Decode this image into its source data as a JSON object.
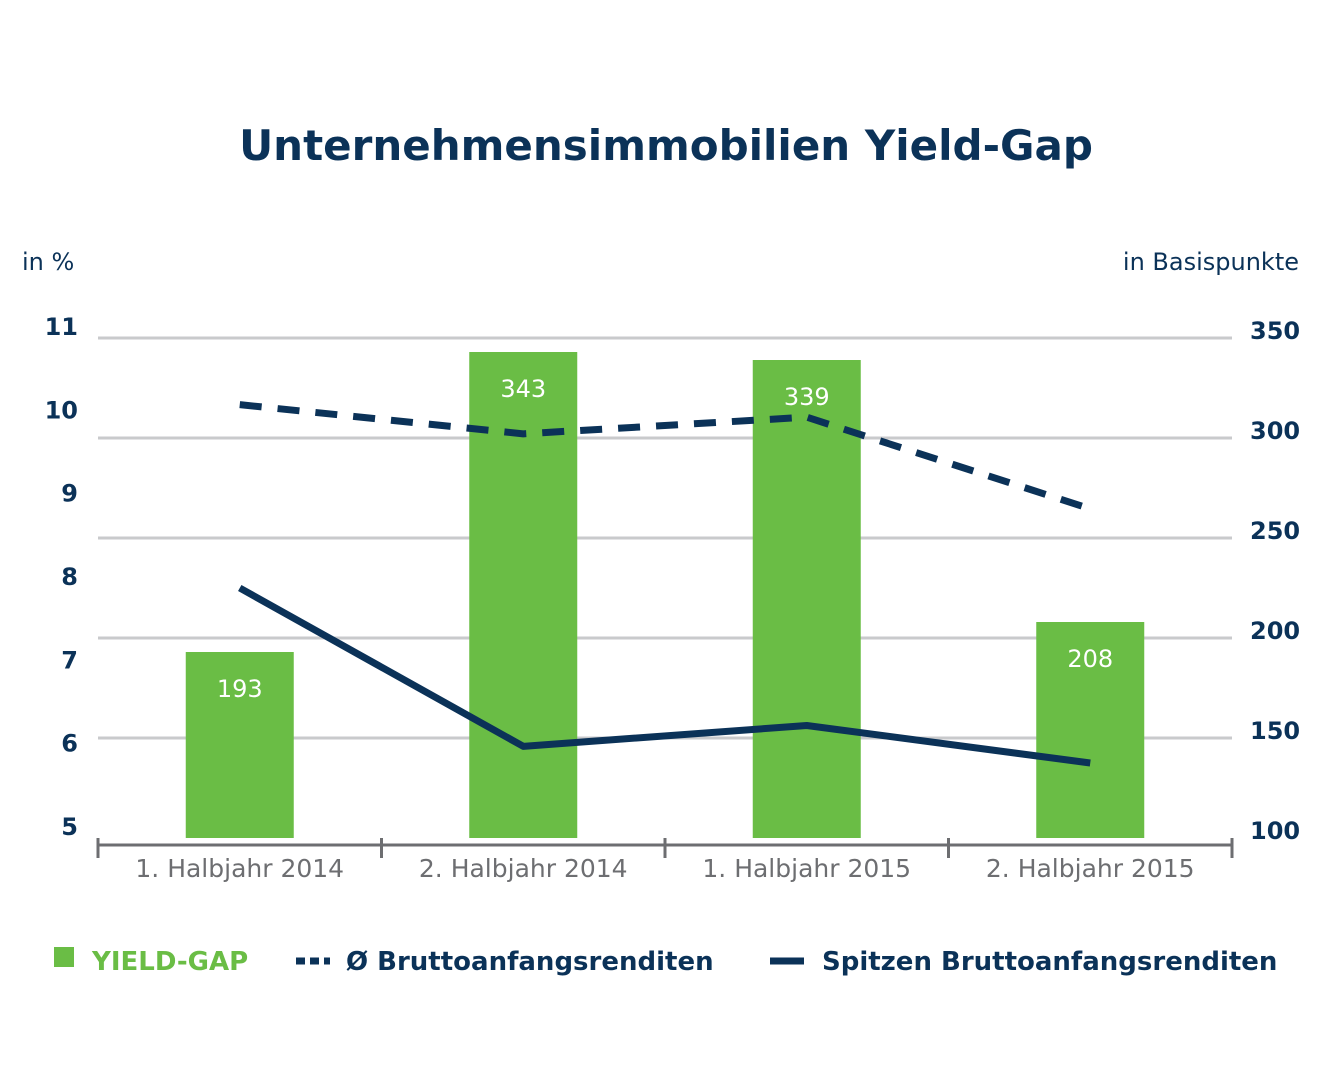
{
  "chart_data": {
    "type": "bar",
    "title": "Unternehmensimmobilien Yield-Gap",
    "y_left_label": "in %",
    "y_right_label": "in Basispunkte",
    "categories": [
      "1. Halbjahr 2014",
      "2. Halbjahr 2014",
      "1. Halbjahr 2015",
      "2. Halbjahr 2015"
    ],
    "y_left_ticks": [
      "11",
      "10",
      "9",
      "8",
      "7",
      "6",
      "5"
    ],
    "y_right_ticks": [
      "350",
      "300",
      "250",
      "200",
      "150",
      "100"
    ],
    "ylim_left": [
      5,
      11
    ],
    "ylim_right": [
      100,
      350
    ],
    "grid": true,
    "legend_position": "bottom",
    "series": [
      {
        "name": "YIELD-GAP",
        "type": "bar",
        "axis": "right",
        "values": [
          193,
          343,
          339,
          208
        ],
        "labels": [
          "193",
          "343",
          "339",
          "208"
        ],
        "color": "#6abd45"
      },
      {
        "name": "Ø Bruttoanfangsrenditen",
        "type": "line",
        "style": "dashed",
        "axis": "left",
        "values": [
          10.2,
          9.85,
          10.05,
          8.95
        ],
        "color": "#0b3258"
      },
      {
        "name": "Spitzen Bruttoanfangsrenditen",
        "type": "line",
        "style": "solid",
        "axis": "left",
        "values": [
          8.0,
          6.1,
          6.35,
          5.9
        ],
        "color": "#0b3258"
      }
    ]
  }
}
